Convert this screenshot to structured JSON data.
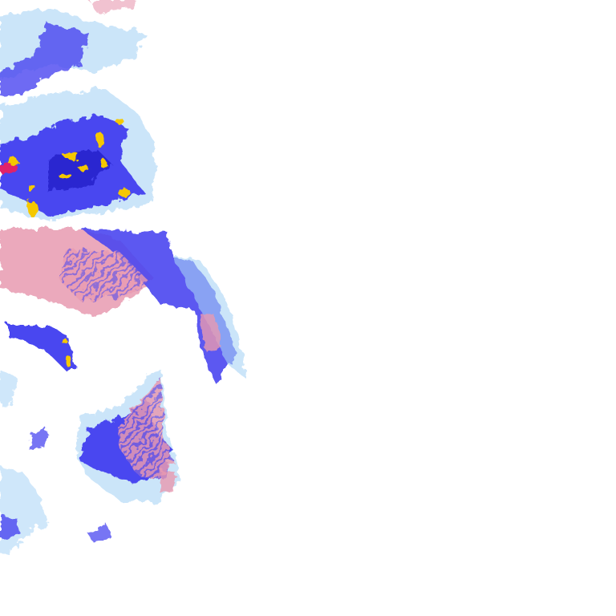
{
  "map": {
    "type": "precipitation-radar-tile",
    "legend_colors": {
      "light": "#a8d4f5",
      "moderate": "#4a46f0",
      "heavy": "#2020c8",
      "intense": "#f5c800",
      "extreme": "#e0206a",
      "mixed_snow": "#e89ab0"
    }
  }
}
